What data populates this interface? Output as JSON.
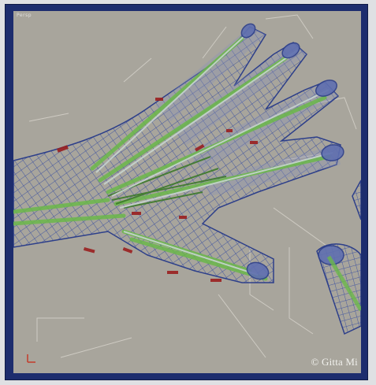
{
  "viewport": {
    "label": "Persp",
    "copyright": "© Gitta Mi"
  },
  "colors": {
    "frame": "#1d2d6e",
    "background": "#a8a59c",
    "mesh": "#3a4fa0",
    "muscle": "#6bb84a",
    "bone": "#b8c8c4",
    "helper": "#9a1f1f",
    "gizmo_line": "#d8d5cd"
  },
  "icons": [
    "axis-gizmo-icon"
  ]
}
